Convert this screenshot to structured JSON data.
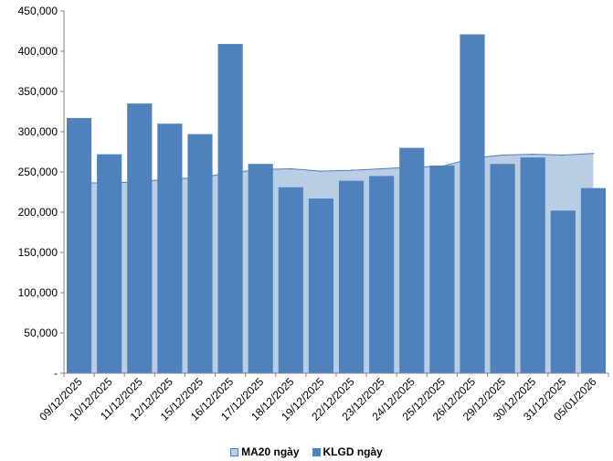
{
  "chart_data": {
    "type": "bar",
    "title": "",
    "xlabel": "",
    "ylabel": "",
    "ylim": [
      0,
      450000
    ],
    "yticks": [
      0,
      50000,
      100000,
      150000,
      200000,
      250000,
      300000,
      350000,
      400000,
      450000
    ],
    "ytick_labels": [
      "-",
      "50,000",
      "100,000",
      "150,000",
      "200,000",
      "250,000",
      "300,000",
      "350,000",
      "400,000",
      "450,000"
    ],
    "grid": false,
    "legend_position": "bottom",
    "categories": [
      "09/12/2025",
      "10/12/2025",
      "11/12/2025",
      "12/12/2025",
      "15/12/2025",
      "16/12/2025",
      "17/12/2025",
      "18/12/2025",
      "19/12/2025",
      "22/12/2025",
      "23/12/2025",
      "24/12/2025",
      "25/12/2025",
      "26/12/2025",
      "29/12/2025",
      "30/12/2025",
      "31/12/2025",
      "05/01/2026"
    ],
    "series": [
      {
        "name": "MA20 ngày",
        "type": "area",
        "color": "#b9cde5",
        "line_color": "#4f81bd",
        "values": [
          237000,
          236000,
          238000,
          241000,
          243000,
          249000,
          253000,
          254000,
          251000,
          252000,
          254000,
          256000,
          257000,
          267000,
          271000,
          272000,
          271000,
          273000
        ]
      },
      {
        "name": "KLGD ngày",
        "type": "bar",
        "color": "#4f81bd",
        "values": [
          317000,
          272000,
          335000,
          310000,
          297000,
          409000,
          260000,
          231000,
          217000,
          239000,
          245000,
          280000,
          258000,
          421000,
          260000,
          268000,
          202000,
          230000
        ]
      }
    ]
  }
}
